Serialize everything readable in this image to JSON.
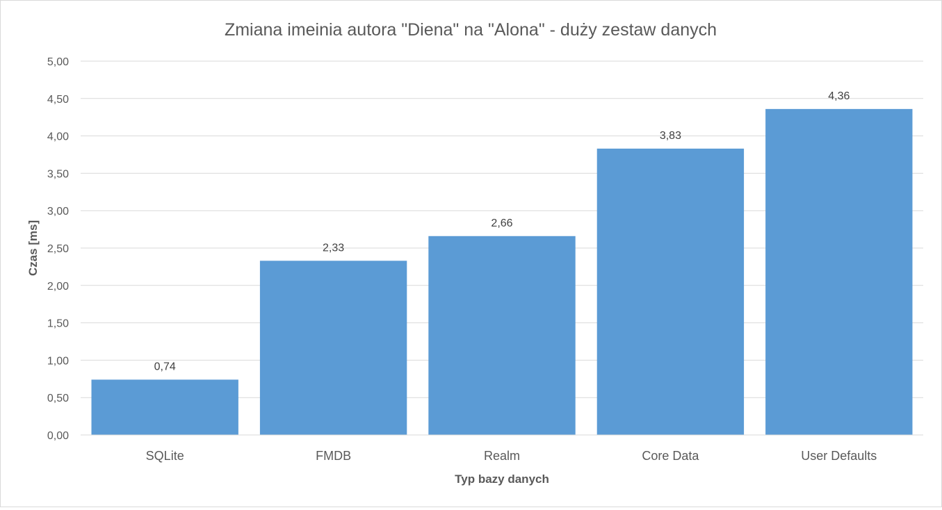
{
  "chart_data": {
    "type": "bar",
    "title": "Zmiana imeinia autora \"Diena\" na \"Alona\" - duży zestaw danych",
    "xlabel": "Typ bazy danych",
    "ylabel": "Czas [ms]",
    "categories": [
      "SQLite",
      "FMDB",
      "Realm",
      "Core Data",
      "User Defaults"
    ],
    "values": [
      0.74,
      2.33,
      2.66,
      3.83,
      4.36
    ],
    "value_labels": [
      "0,74",
      "2,33",
      "2,66",
      "3,83",
      "4,36"
    ],
    "ylim": [
      0,
      5
    ],
    "yticks": [
      "0,00",
      "0,50",
      "1,00",
      "1,50",
      "2,00",
      "2,50",
      "3,00",
      "3,50",
      "4,00",
      "4,50",
      "5,00"
    ],
    "grid": true,
    "legend": "none",
    "bar_color": "#5b9bd5"
  }
}
